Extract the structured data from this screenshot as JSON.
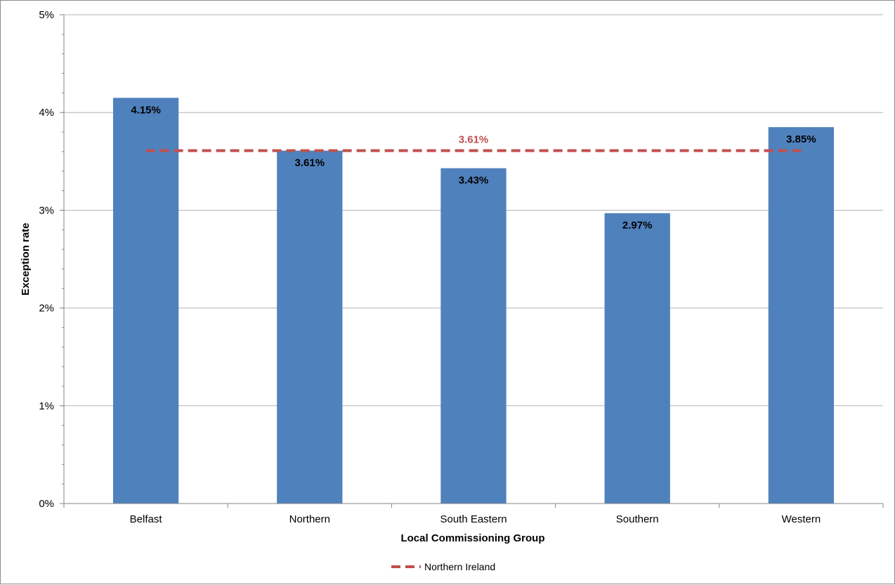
{
  "chart_data": {
    "type": "bar",
    "title": "",
    "xlabel": "Local Commissioning Group",
    "ylabel": "Exception rate",
    "categories": [
      "Belfast",
      "Northern",
      "South Eastern",
      "Southern",
      "Western"
    ],
    "values": [
      4.15,
      3.61,
      3.43,
      2.97,
      3.85
    ],
    "value_labels": [
      "4.15%",
      "3.61%",
      "3.43%",
      "2.97%",
      "3.85%"
    ],
    "ylim": [
      0,
      5
    ],
    "yticks": [
      {
        "value": 0,
        "label": "0%"
      },
      {
        "value": 1,
        "label": "1%"
      },
      {
        "value": 2,
        "label": "2%"
      },
      {
        "value": 3,
        "label": "3%"
      },
      {
        "value": 4,
        "label": "4%"
      },
      {
        "value": 5,
        "label": "5%"
      }
    ],
    "grid": true,
    "reference_line": {
      "name": "Northern Ireland",
      "value": 3.61,
      "label": "3.61%",
      "style": "dashed"
    },
    "legend": {
      "position": "bottom",
      "entries": [
        "Northern Ireland"
      ]
    }
  },
  "colors": {
    "bar": "#4f81bd",
    "reference_line": "#c0504d",
    "gridline": "#b3b3b3",
    "axis": "#868686"
  }
}
